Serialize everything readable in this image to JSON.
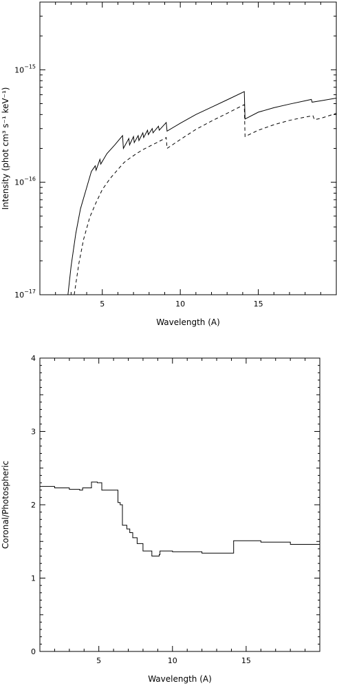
{
  "chart_data": [
    {
      "type": "line",
      "xlabel": "Wavelength (A)",
      "ylabel": "Intensity (phot cm³ s⁻¹ keV⁻¹)",
      "xlim": [
        1,
        20
      ],
      "ylim": [
        1e-17,
        4e-15
      ],
      "yscale": "log",
      "x_ticks": [
        5,
        10,
        15
      ],
      "y_ticks": [
        {
          "value": 1e-17,
          "label_base": "10",
          "label_exp": "−17"
        },
        {
          "value": 1e-16,
          "label_base": "10",
          "label_exp": "−16"
        },
        {
          "value": 1e-15,
          "label_base": "10",
          "label_exp": "−15"
        }
      ],
      "series": [
        {
          "style": "solid",
          "x": [
            2.8,
            3.0,
            3.3,
            3.6,
            4.0,
            4.3,
            4.55,
            4.6,
            4.85,
            4.9,
            5.3,
            5.8,
            6.3,
            6.35,
            6.7,
            6.75,
            7.0,
            7.05,
            7.3,
            7.35,
            7.6,
            7.65,
            7.9,
            7.95,
            8.2,
            8.25,
            8.6,
            8.65,
            9.1,
            9.15,
            10.0,
            11.0,
            12.0,
            13.0,
            14.1,
            14.15,
            15.0,
            16.0,
            17.0,
            18.0,
            18.4,
            18.45,
            19.0,
            20.0
          ],
          "y": [
            1e-17,
            1.8e-17,
            3.5e-17,
            5.8e-17,
            9e-17,
            1.25e-16,
            1.4e-16,
            1.28e-16,
            1.6e-16,
            1.45e-16,
            1.8e-16,
            2.15e-16,
            2.6e-16,
            2e-16,
            2.45e-16,
            2.15e-16,
            2.55e-16,
            2.25e-16,
            2.6e-16,
            2.35e-16,
            2.75e-16,
            2.5e-16,
            2.9e-16,
            2.65e-16,
            3e-16,
            2.75e-16,
            3.15e-16,
            2.9e-16,
            3.4e-16,
            2.85e-16,
            3.35e-16,
            4e-16,
            4.65e-16,
            5.4e-16,
            6.4e-16,
            3.65e-16,
            4.2e-16,
            4.6e-16,
            4.95e-16,
            5.3e-16,
            5.45e-16,
            5.15e-16,
            5.3e-16,
            5.6e-16
          ]
        },
        {
          "style": "dashed",
          "x": [
            3.2,
            3.5,
            3.8,
            4.2,
            4.6,
            5.0,
            5.5,
            6.0,
            6.4,
            6.8,
            7.2,
            7.6,
            8.0,
            8.5,
            9.0,
            9.1,
            9.15,
            10.0,
            11.0,
            12.0,
            13.0,
            14.1,
            14.15,
            15.0,
            16.0,
            17.0,
            18.0,
            18.5,
            18.6,
            19.0,
            20.0
          ],
          "y": [
            1e-17,
            1.9e-17,
            3.1e-17,
            4.9e-17,
            6.6e-17,
            8.6e-17,
            1.08e-16,
            1.3e-16,
            1.5e-16,
            1.65e-16,
            1.8e-16,
            1.95e-16,
            2.08e-16,
            2.25e-16,
            2.45e-16,
            2.5e-16,
            2e-16,
            2.4e-16,
            2.95e-16,
            3.5e-16,
            4.1e-16,
            4.9e-16,
            2.55e-16,
            2.9e-16,
            3.25e-16,
            3.55e-16,
            3.8e-16,
            3.9e-16,
            3.6e-16,
            3.7e-16,
            4.1e-16
          ]
        }
      ]
    },
    {
      "type": "line",
      "xlabel": "Wavelength (A)",
      "ylabel": "Coronal/Photospheric",
      "xlim": [
        1,
        20
      ],
      "ylim": [
        0,
        4
      ],
      "yscale": "linear",
      "x_ticks": [
        5,
        10,
        15
      ],
      "y_ticks": [
        {
          "value": 0,
          "label": "0"
        },
        {
          "value": 1,
          "label": "1"
        },
        {
          "value": 2,
          "label": "2"
        },
        {
          "value": 3,
          "label": "3"
        },
        {
          "value": 4,
          "label": "4"
        }
      ],
      "series": [
        {
          "style": "step",
          "x": [
            1.0,
            2.0,
            3.0,
            3.7,
            3.9,
            4.5,
            4.9,
            5.2,
            6.3,
            6.45,
            6.6,
            6.9,
            7.1,
            7.3,
            7.6,
            8.0,
            8.6,
            9.1,
            9.15,
            10.0,
            12.0,
            14.1,
            14.15,
            16.0,
            18.0,
            20.0
          ],
          "y": [
            2.25,
            2.23,
            2.21,
            2.2,
            2.23,
            2.31,
            2.3,
            2.2,
            2.03,
            2.0,
            1.72,
            1.67,
            1.62,
            1.55,
            1.47,
            1.37,
            1.3,
            1.32,
            1.37,
            1.36,
            1.34,
            1.34,
            1.51,
            1.49,
            1.46,
            1.41
          ]
        }
      ]
    }
  ]
}
